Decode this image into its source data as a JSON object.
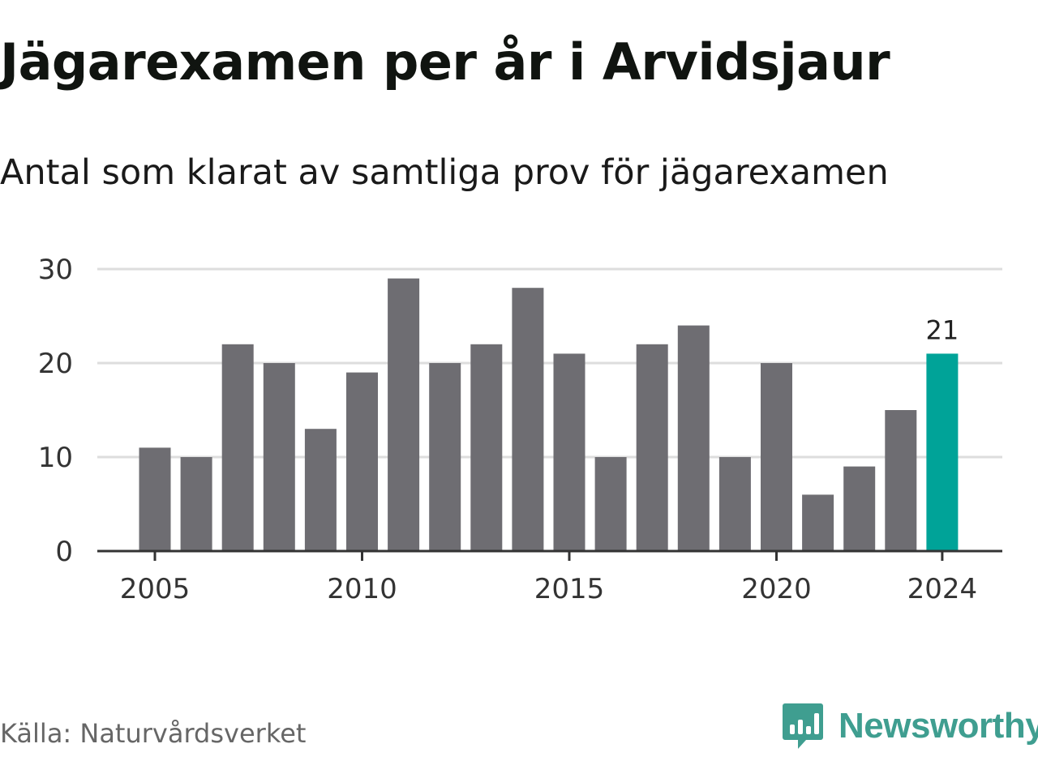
{
  "title": "Jägarexamen per år i Arvidsjaur",
  "subtitle": "Antal som klarat av samtliga prov för jägarexamen",
  "source": "Källa: Naturvårdsverket",
  "brand": {
    "name": "Newsworthy",
    "icon": "newsworthy-logo-icon",
    "color": "#3f9e90"
  },
  "colors": {
    "bar": "#6e6d72",
    "highlight": "#00a398",
    "grid": "#dddddd",
    "axis": "#333333"
  },
  "chart_data": {
    "type": "bar",
    "x": [
      2005,
      2006,
      2007,
      2008,
      2009,
      2010,
      2011,
      2012,
      2013,
      2014,
      2015,
      2016,
      2017,
      2018,
      2019,
      2020,
      2021,
      2022,
      2023,
      2024
    ],
    "values": [
      11,
      10,
      22,
      20,
      13,
      19,
      29,
      20,
      22,
      28,
      21,
      10,
      22,
      24,
      10,
      20,
      6,
      9,
      15,
      21
    ],
    "title": "Jägarexamen per år i Arvidsjaur",
    "subtitle": "Antal som klarat av samtliga prov för jägarexamen",
    "xlabel": "",
    "ylabel": "",
    "ylim": [
      0,
      30
    ],
    "yticks": [
      0,
      10,
      20,
      30
    ],
    "xticks": [
      2005,
      2010,
      2015,
      2020,
      2024
    ],
    "highlight": {
      "x": 2024,
      "label": "21"
    },
    "grid": true,
    "legend": "none"
  }
}
